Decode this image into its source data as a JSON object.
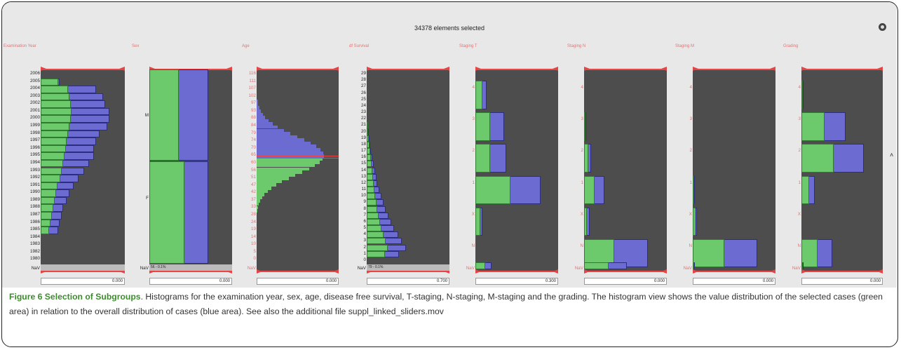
{
  "app": {
    "status_text": "34378 elements selected",
    "settings_icon": "settings-icon",
    "side_caret": "˄"
  },
  "colors": {
    "selected": "#6cc96c",
    "overall": "#6b6bd1",
    "plot_bg": "#4d4d4d",
    "slider": "#e44444",
    "axis_label": "#d77777"
  },
  "panels": [
    {
      "title": "Examination Year",
      "ticks": [
        "2006",
        "2005",
        "2004",
        "2003",
        "2002",
        "2001",
        "2000",
        "1999",
        "1998",
        "1997",
        "1996",
        "1995",
        "1994",
        "1993",
        "1992",
        "1991",
        "1990",
        "1989",
        "1988",
        "1987",
        "1986",
        "1985",
        "1984",
        "1983",
        "1982",
        "1980",
        "NaV"
      ],
      "tick_color": "dark",
      "value": "0.000",
      "nav_label": "",
      "bars_blue": [
        0,
        0.27,
        0.8,
        0.9,
        0.93,
        1.0,
        1.0,
        0.97,
        0.85,
        0.8,
        0.77,
        0.77,
        0.7,
        0.63,
        0.55,
        0.48,
        0.42,
        0.38,
        0.33,
        0.3,
        0.27,
        0.25,
        0,
        0,
        0,
        0
      ],
      "bars_green": [
        0,
        0.25,
        0.4,
        0.42,
        0.44,
        0.45,
        0.44,
        0.42,
        0.4,
        0.38,
        0.37,
        0.35,
        0.33,
        0.3,
        0.28,
        0.24,
        0.22,
        0.2,
        0.18,
        0.16,
        0.14,
        0.12,
        0,
        0,
        0,
        0
      ],
      "nav_fill": false
    },
    {
      "title": "Sex",
      "ticks": [
        "M",
        "F",
        "NaV"
      ],
      "tick_color": "dark",
      "value": "0.000",
      "nav_label": "56 - 0.1%",
      "split": 0.477,
      "green_top": 0.36,
      "blue_top": 0.98,
      "green_bot": 0.42,
      "blue_bot": 0.98
    },
    {
      "title": "Age",
      "ticks": [
        "116",
        "111",
        "107",
        "102",
        "97",
        "93",
        "88",
        "84",
        "79",
        "74",
        "70",
        "65",
        "60",
        "56",
        "51",
        "47",
        "42",
        "37",
        "33",
        "28",
        "24",
        "19",
        "14",
        "10",
        "5",
        "0",
        "NaV"
      ],
      "tick_color": "red",
      "value": "0.000",
      "nav_label": ""
    },
    {
      "title": "df Survival",
      "ticks": [
        "29",
        "28",
        "27",
        "26",
        "25",
        "24",
        "23",
        "22",
        "21",
        "20",
        "19",
        "18",
        "17",
        "16",
        "15",
        "14",
        "13",
        "12",
        "11",
        "10",
        "9",
        "8",
        "7",
        "6",
        "5",
        "4",
        "3",
        "2",
        "1",
        "0",
        "NaV"
      ],
      "tick_color": "dark",
      "value": "0.700",
      "nav_label": "79 - 0.1%",
      "bars_blue": [
        0,
        0,
        0,
        0,
        0,
        0,
        0,
        0,
        0.02,
        0.03,
        0.04,
        0.05,
        0.06,
        0.08,
        0.1,
        0.12,
        0.14,
        0.16,
        0.19,
        0.22,
        0.25,
        0.28,
        0.32,
        0.36,
        0.4,
        0.46,
        0.52,
        0.58,
        0.48,
        0
      ],
      "bars_green": [
        0,
        0,
        0,
        0,
        0,
        0,
        0,
        0,
        0.02,
        0.02,
        0.03,
        0.04,
        0.05,
        0.06,
        0.07,
        0.08,
        0.09,
        0.1,
        0.11,
        0.12,
        0.14,
        0.16,
        0.18,
        0.2,
        0.22,
        0.25,
        0.28,
        0.31,
        0.27,
        0
      ]
    },
    {
      "title": "Staging T",
      "ticks": [
        "4",
        "3",
        "2",
        "1",
        "X",
        "N",
        "NaV"
      ],
      "tick_color": "red",
      "value": "0.300",
      "bars_green": [
        0.1,
        0.22,
        0.22,
        0.52,
        0.07,
        0,
        0.14
      ],
      "bars_blue": [
        0.17,
        0.42,
        0.45,
        0.96,
        0.1,
        0,
        0.24
      ]
    },
    {
      "title": "Staging N",
      "ticks": [
        "4",
        "3",
        "2",
        "1",
        "X",
        "N",
        "NaV"
      ],
      "tick_color": "red",
      "value": "0.000",
      "bars_green": [
        0,
        0.02,
        0.06,
        0.16,
        0.04,
        0.44,
        0.36
      ],
      "bars_blue": [
        0,
        0.03,
        0.1,
        0.3,
        0.08,
        0.94,
        0.63
      ]
    },
    {
      "title": "Staging M",
      "ticks": [
        "4",
        "3",
        "2",
        "1",
        "X",
        "N",
        "NaV"
      ],
      "tick_color": "red",
      "value": "0.000",
      "bars_green": [
        0,
        0,
        0,
        0.02,
        0.04,
        0.46,
        0.02
      ],
      "bars_blue": [
        0,
        0,
        0,
        0.03,
        0.06,
        0.95,
        0.03
      ]
    },
    {
      "title": "Grading",
      "ticks": [
        "4",
        "3",
        "2",
        "1",
        "X",
        "N",
        "NaV"
      ],
      "tick_color": "red",
      "value": "0.000",
      "bars_green": [
        0.02,
        0.35,
        0.48,
        0.12,
        0,
        0.24,
        0.02
      ],
      "bars_blue": [
        0.03,
        0.66,
        0.94,
        0.2,
        0,
        0.46,
        0.03
      ]
    }
  ],
  "caption": {
    "title": "Figure 6 Selection of Subgroups",
    "body": ". Histograms for the examination year, sex, age, disease free survival, T-staging, N-staging, M-staging and the grading. The histogram view shows the value distribution of the selected cases (green area) in relation to the overall distribution of cases (blue area). See also the additional file suppl_linked_sliders.mov"
  }
}
